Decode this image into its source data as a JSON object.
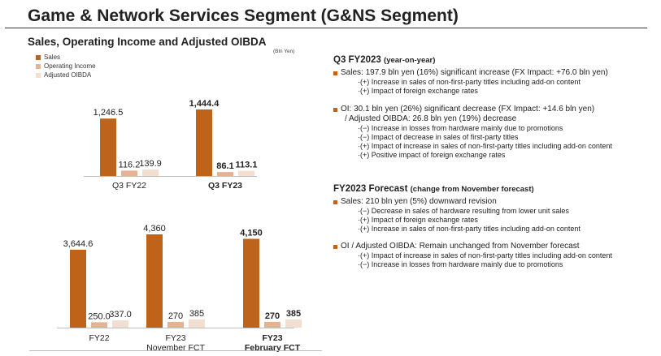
{
  "header": {
    "title": "Game & Network Services Segment (G&NS Segment)",
    "subtitle": "Sales, Operating Income and Adjusted OIBDA",
    "unit": "(Bln Yen)"
  },
  "colors": {
    "sales": "#c0631a",
    "operating_income": "#e4b393",
    "adjusted_oibda": "#f3dfd1",
    "bullet": "#c0631a"
  },
  "chart_data": [
    {
      "type": "bar",
      "title": "Sales, Operating Income and Adjusted OIBDA",
      "unit": "(Bln Yen)",
      "legend": [
        "Sales",
        "Operating Income",
        "Adjusted OIBDA"
      ],
      "categories": [
        "Q3 FY22",
        "Q3 FY23"
      ],
      "series": [
        {
          "name": "Sales",
          "values": [
            1246.5,
            1444.4
          ],
          "labels": [
            "1,246.5",
            "1,444.4"
          ]
        },
        {
          "name": "Operating Income",
          "values": [
            116.2,
            86.1
          ],
          "labels": [
            "116.2",
            "86.1"
          ]
        },
        {
          "name": "Adjusted OIBDA",
          "values": [
            139.9,
            113.1
          ],
          "labels": [
            "139.9",
            "113.1"
          ]
        }
      ]
    },
    {
      "type": "bar",
      "categories": [
        "FY22",
        "FY23 November FCT",
        "FY23 February FCT"
      ],
      "category_lines": [
        [
          "FY22"
        ],
        [
          "FY23",
          "November FCT"
        ],
        [
          "FY23",
          "February FCT"
        ]
      ],
      "series": [
        {
          "name": "Sales",
          "values": [
            3644.6,
            4360,
            4150
          ],
          "labels": [
            "3,644.6",
            "4,360",
            "4,150"
          ]
        },
        {
          "name": "Operating Income",
          "values": [
            250.0,
            270,
            270
          ],
          "labels": [
            "250.0",
            "270",
            "270"
          ]
        },
        {
          "name": "Adjusted OIBDA",
          "values": [
            337.0,
            385,
            385
          ],
          "labels": [
            "337.0",
            "385",
            "385"
          ]
        }
      ]
    }
  ],
  "right": {
    "q3": {
      "heading": "Q3 FY2023",
      "heading_paren": "(year-on-year)",
      "sales_bullet": "Sales: 197.9 bln yen (16%) significant increase (FX Impact: +76.0 bln yen)",
      "sales_subs": [
        "·(+) Increase in sales of non-first-party titles including add-on content",
        "·(+) Impact of foreign exchange rates"
      ],
      "oi_bullet": "OI: 30.1 bln yen (26%) significant decrease (FX Impact: +14.6 bln yen)",
      "oi_cont": "/ Adjusted OIBDA: 26.8 bln yen (19%) decrease",
      "oi_subs": [
        "·(−) Increase in losses from hardware mainly due to promotions",
        "·(−) Impact of decrease in sales of first-party titles",
        "·(+) Impact of increase in sales of non-first-party titles including add-on content",
        "·(+) Positive impact of foreign exchange rates"
      ]
    },
    "forecast": {
      "heading": "FY2023 Forecast",
      "heading_paren": "(change from November forecast)",
      "sales_bullet": "Sales: 210 bln yen (5%) downward revision",
      "sales_subs": [
        "·(−) Decrease in sales of hardware resulting from lower unit sales",
        "·(+) Impact of foreign exchange rates",
        "·(+) Increase in sales of non-first-party titles including add-on content"
      ],
      "oi_bullet": "OI / Adjusted OIBDA: Remain unchanged from November forecast",
      "oi_subs": [
        "·(+) Impact of increase in sales of non-first-party titles including add-on content",
        "·(−) Increase in losses from hardware mainly due to promotions"
      ]
    }
  }
}
